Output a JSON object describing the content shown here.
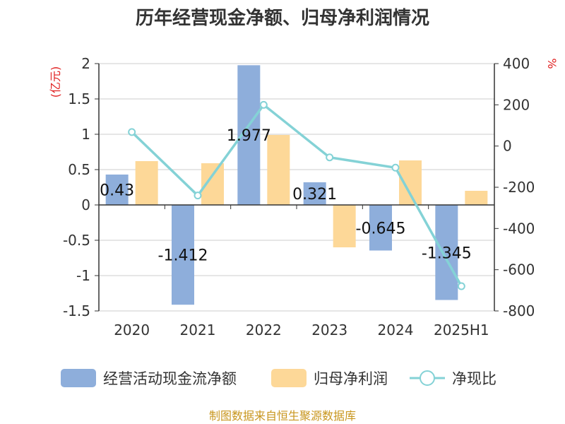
{
  "title": "历年经营现金净额、归母净利润情况",
  "source": "制图数据来自恒生聚源数据库",
  "chart_data": {
    "type": "bar",
    "title": "历年经营现金净额、归母净利润情况",
    "categories": [
      "2020",
      "2021",
      "2022",
      "2023",
      "2024",
      "2025H1"
    ],
    "series": [
      {
        "name": "经营活动现金流净额",
        "kind": "bar",
        "axis": "left",
        "color": "#8eaedb",
        "values": [
          0.43,
          -1.412,
          1.977,
          0.321,
          -0.645,
          -1.345
        ],
        "labels": [
          "0.43",
          "-1.412",
          "1.977",
          "0.321",
          "-0.645",
          "-1.345"
        ]
      },
      {
        "name": "归母净利润",
        "kind": "bar",
        "axis": "left",
        "color": "#fdd898",
        "values": [
          0.62,
          0.59,
          0.99,
          -0.6,
          0.63,
          0.2
        ]
      },
      {
        "name": "净现比",
        "kind": "line",
        "axis": "right",
        "color": "#84d2d6",
        "values": [
          68,
          -240,
          200,
          -55,
          -105,
          -680
        ]
      }
    ],
    "y_left": {
      "unit": "(亿元)",
      "min": -1.5,
      "max": 2,
      "ticks": [
        2,
        1.5,
        1,
        0.5,
        0,
        -0.5,
        -1,
        -1.5
      ],
      "tick_labels": [
        "2",
        "1.5",
        "1",
        "0.5",
        "0",
        "-0.5",
        "-1",
        "-1.5"
      ]
    },
    "y_right": {
      "unit": "%",
      "min": -800,
      "max": 400,
      "ticks": [
        400,
        200,
        0,
        -200,
        -400,
        -600,
        -800
      ],
      "tick_labels": [
        "400",
        "200",
        "0",
        "-200",
        "-400",
        "-600",
        "-800"
      ]
    },
    "grid": true,
    "legend_position": "bottom"
  }
}
